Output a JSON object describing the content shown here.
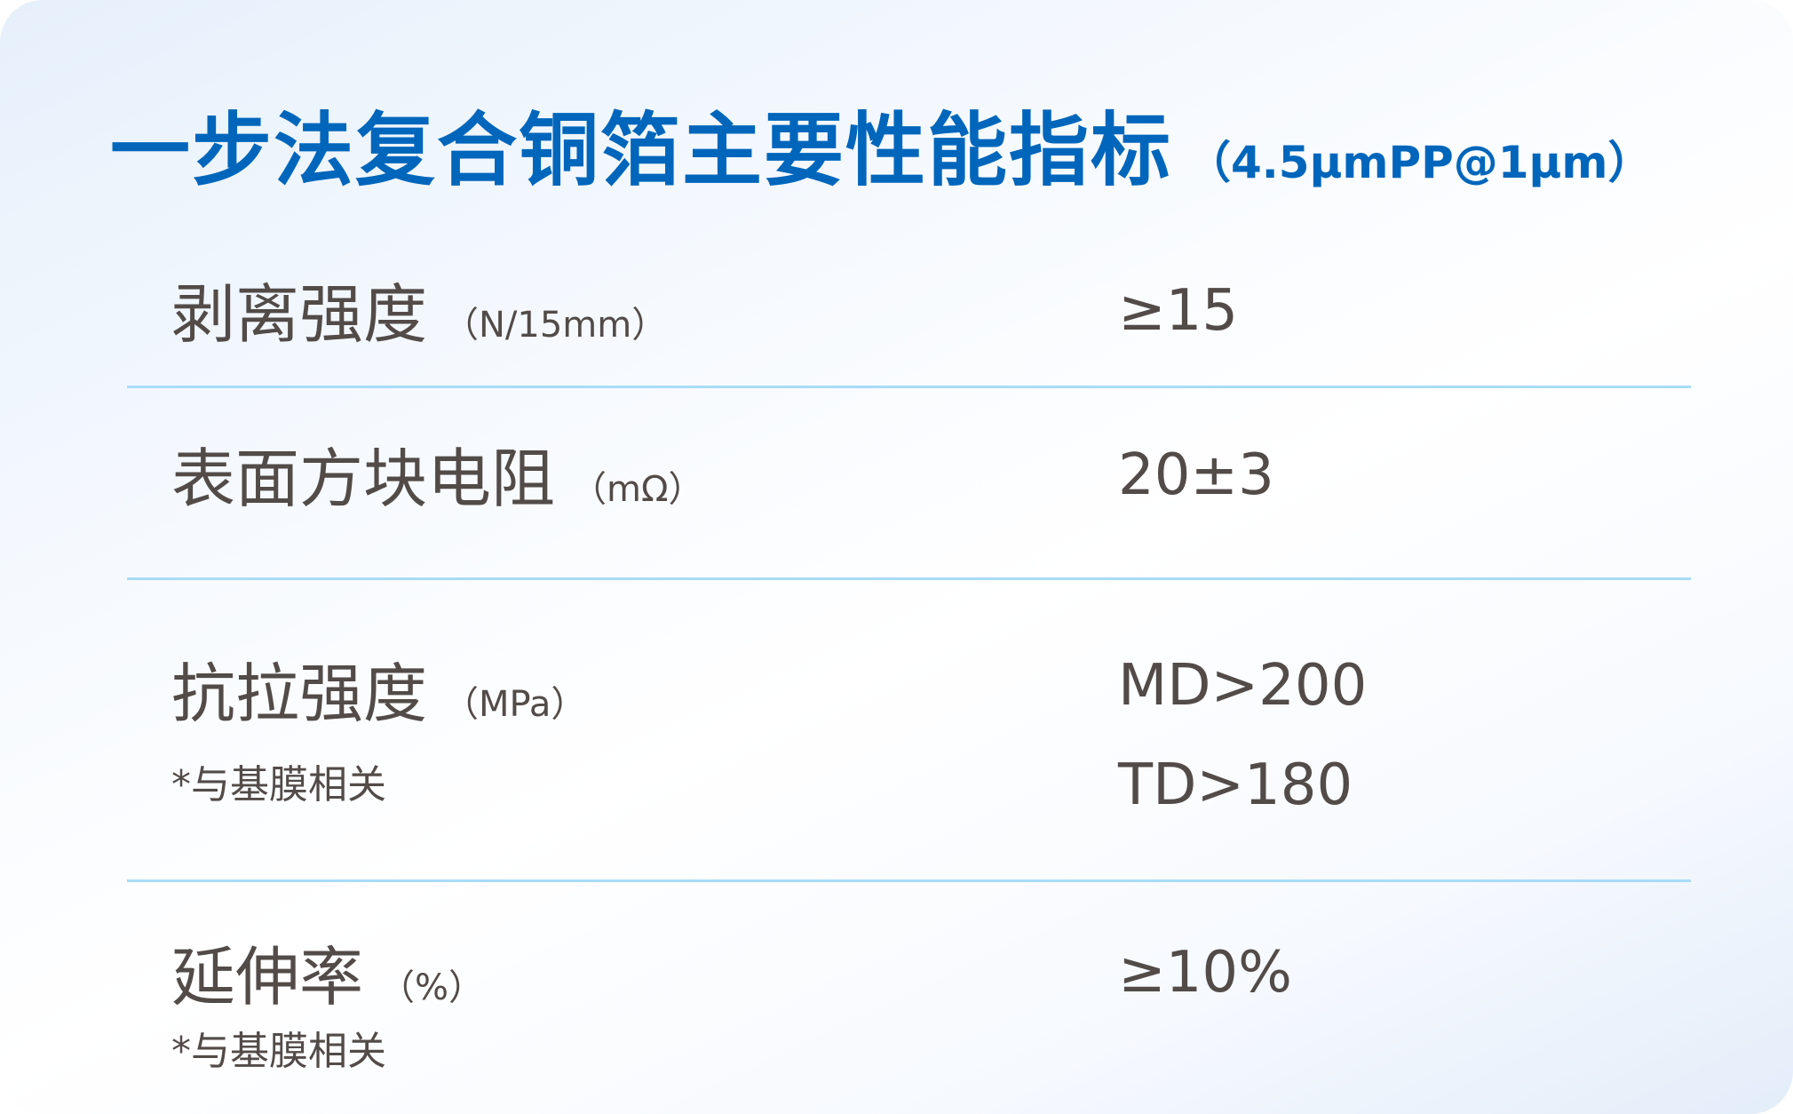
{
  "title": {
    "main": "一步法复合铜箔主要性能指标",
    "sub": "（4.5μmPP@1μm）"
  },
  "rows": [
    {
      "name": "剥离强度",
      "unit": "（N/15mm）",
      "values": [
        "≥15"
      ]
    },
    {
      "name": "表面方块电阻",
      "unit": "（mΩ）",
      "values": [
        "20±3"
      ]
    },
    {
      "name": "抗拉强度",
      "unit": "（MPa）",
      "note": "*与基膜相关",
      "values": [
        "MD>200",
        "TD>180"
      ]
    },
    {
      "name": "延伸率",
      "unit": "（%）",
      "note": "*与基膜相关",
      "values": [
        "≥10%"
      ]
    }
  ],
  "colors": {
    "title": "#0066bb",
    "text": "#524b48",
    "divider": "#a8dcf8"
  }
}
